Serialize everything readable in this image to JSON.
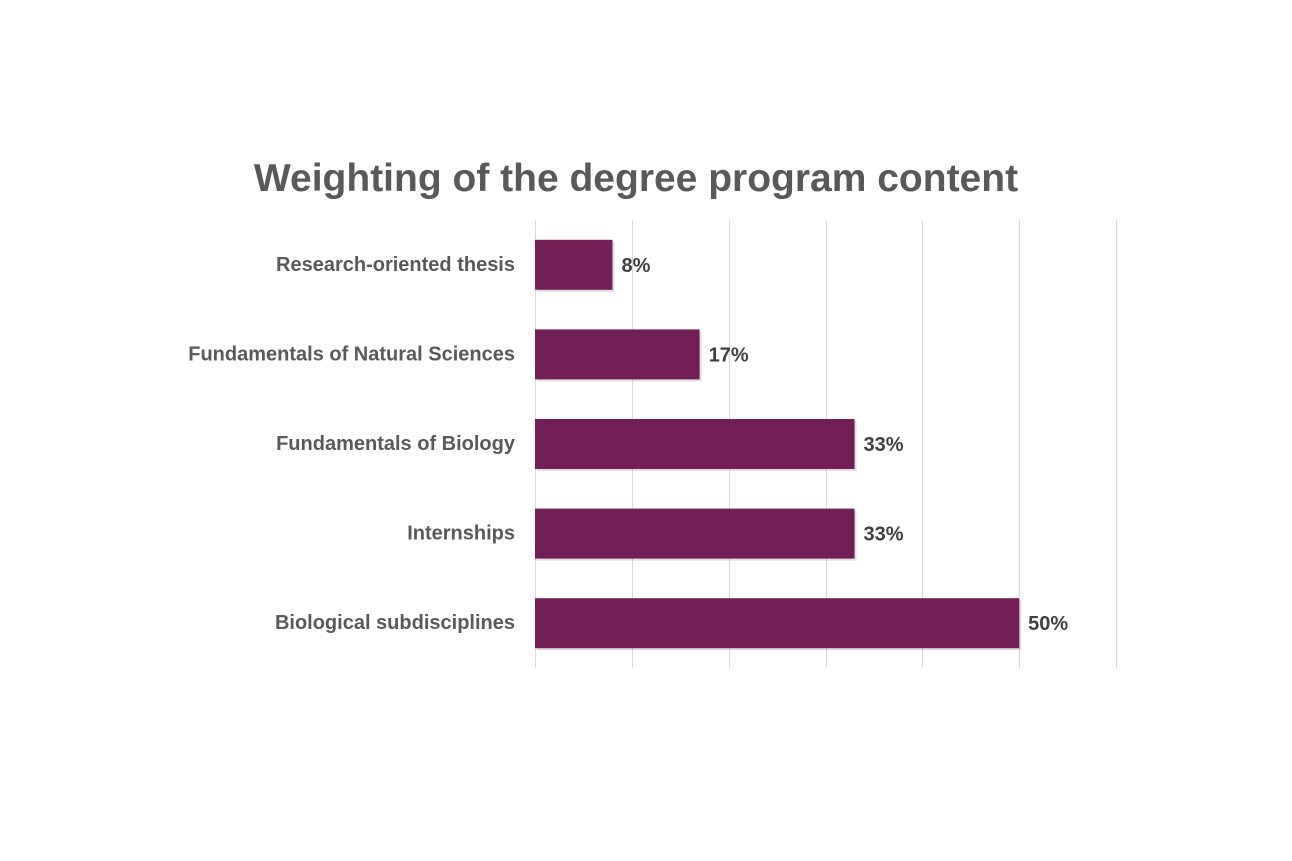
{
  "chart_data": {
    "type": "bar",
    "orientation": "horizontal",
    "title": "Weighting of the degree program content",
    "xlabel": "",
    "ylabel": "",
    "categories": [
      "Research-oriented thesis",
      "Fundamentals of Natural Sciences",
      "Fundamentals of Biology",
      "Internships",
      "Biological subdisciplines"
    ],
    "values": [
      8,
      17,
      33,
      33,
      50
    ],
    "data_labels": [
      "8%",
      "17%",
      "33%",
      "33%",
      "50%"
    ],
    "value_unit": "%",
    "xlim": [
      0,
      60
    ],
    "x_gridline_step": 10,
    "x_tick_labels_visible": false,
    "grid": true,
    "legend": "none",
    "colors": {
      "bar": "#731E57",
      "gridline": "#D9D9D9",
      "category_label": "#595959",
      "data_label": "#404040",
      "title": "#595959"
    }
  }
}
